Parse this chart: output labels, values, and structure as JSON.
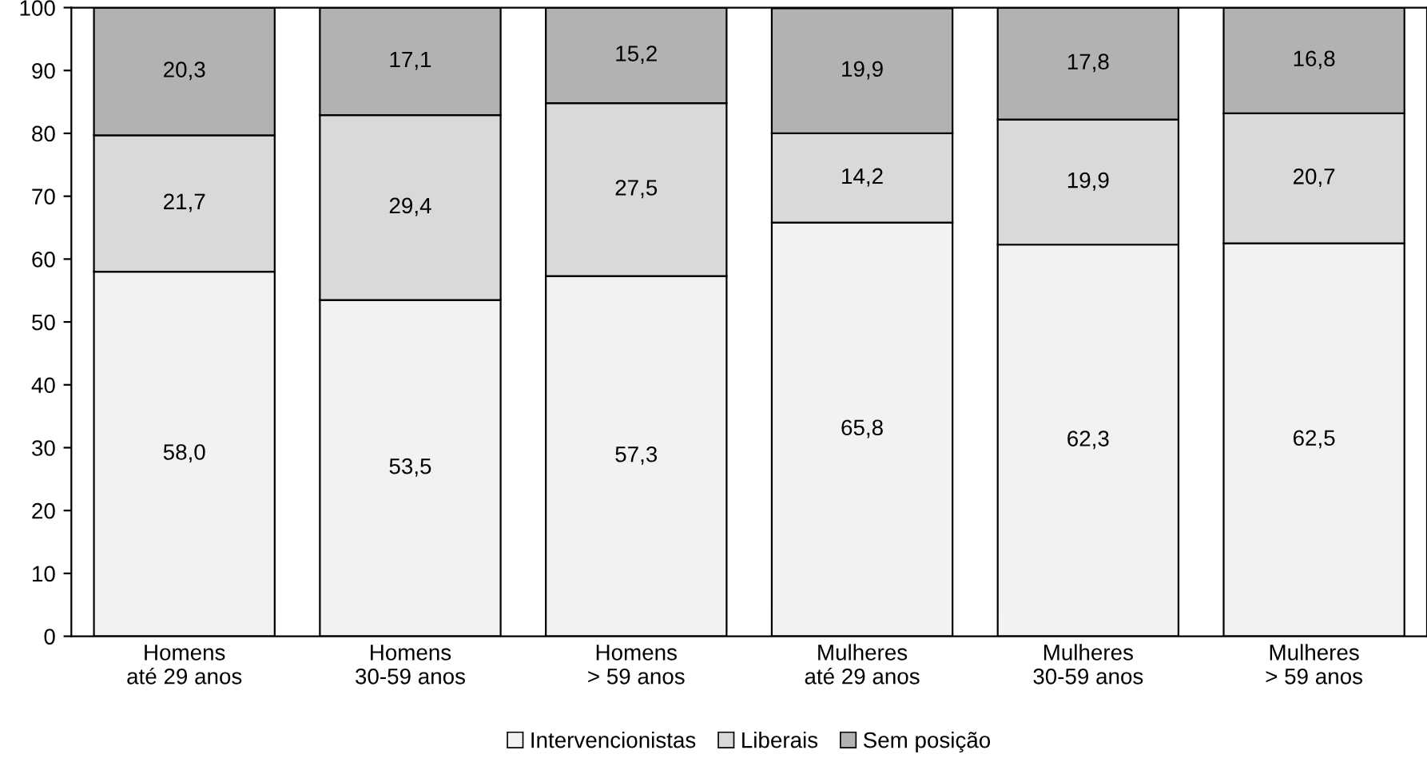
{
  "chart_data": {
    "type": "bar",
    "stacked": true,
    "categories": [
      "Homens\naté 29 anos",
      "Homens\n30-59 anos",
      "Homens\n> 59 anos",
      "Mulheres\naté 29 anos",
      "Mulheres\n30-59 anos",
      "Mulheres\n> 59 anos"
    ],
    "series": [
      {
        "name": "Intervencionistas",
        "color": "#f2f2f2",
        "values": [
          58.0,
          53.5,
          57.3,
          65.8,
          62.3,
          62.5
        ],
        "value_labels": [
          "58,0",
          "53,5",
          "57,3",
          "65,8",
          "62,3",
          "62,5"
        ]
      },
      {
        "name": "Liberais",
        "color": "#d9d9d9",
        "values": [
          21.7,
          29.4,
          27.5,
          14.2,
          19.9,
          20.7
        ],
        "value_labels": [
          "21,7",
          "29,4",
          "27,5",
          "14,2",
          "19,9",
          "20,7"
        ]
      },
      {
        "name": "Sem posição",
        "color": "#b2b2b2",
        "values": [
          20.3,
          17.1,
          15.2,
          19.9,
          17.8,
          16.8
        ],
        "value_labels": [
          "20,3",
          "17,1",
          "15,2",
          "19,9",
          "17,8",
          "16,8"
        ]
      }
    ],
    "ylim": [
      0,
      100
    ],
    "yticks": [
      0,
      10,
      20,
      30,
      40,
      50,
      60,
      70,
      80,
      90,
      100
    ],
    "grid": false,
    "legend": "bottom"
  }
}
